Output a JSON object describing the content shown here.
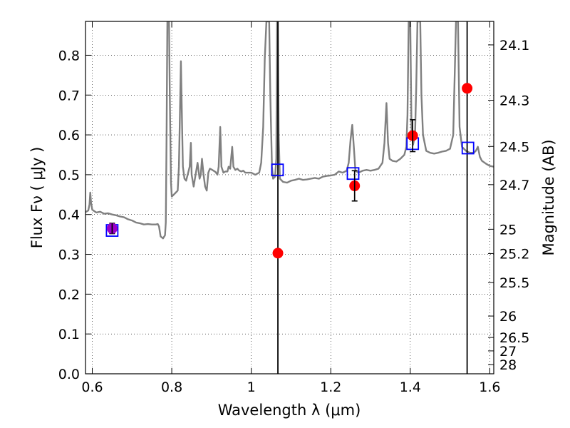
{
  "chart_data": {
    "type": "scatter",
    "xlabel": "Wavelength  λ (μm)",
    "ylabel": "Flux  Fν  ( μJy )",
    "y2label": "Magnitude (AB)",
    "xlim": [
      0.583,
      1.61
    ],
    "ylim": [
      0.0,
      0.885
    ],
    "grid": true,
    "x_ticks": [
      0.6,
      0.8,
      1.0,
      1.2,
      1.4,
      1.6
    ],
    "x_tick_labels": [
      "0.6",
      "0.8",
      "1",
      "1.2",
      "1.4",
      "1.6"
    ],
    "y_ticks": [
      0.0,
      0.1,
      0.2,
      0.3,
      0.4,
      0.5,
      0.6,
      0.7,
      0.8
    ],
    "y_tick_labels": [
      "0.0",
      "0.1",
      "0.2",
      "0.3",
      "0.4",
      "0.5",
      "0.6",
      "0.7",
      "0.8"
    ],
    "y2_ticks": [
      {
        "label": "24.1",
        "flux": 0.826
      },
      {
        "label": "24.3",
        "flux": 0.687
      },
      {
        "label": "24.5",
        "flux": 0.571
      },
      {
        "label": "24.7",
        "flux": 0.475
      },
      {
        "label": "25",
        "flux": 0.363
      },
      {
        "label": "25.2",
        "flux": 0.302
      },
      {
        "label": "25.5",
        "flux": 0.229
      },
      {
        "label": "26",
        "flux": 0.145
      },
      {
        "label": "26.5",
        "flux": 0.0912
      },
      {
        "label": "27",
        "flux": 0.0575
      },
      {
        "label": "28",
        "flux": 0.0229
      }
    ],
    "vertical_lines": [
      1.067,
      1.543
    ],
    "observed": [
      {
        "x": 0.65,
        "y": 0.365,
        "err": 0.013,
        "color": "#9b00c8"
      },
      {
        "x": 1.067,
        "y": 0.303,
        "err": null,
        "color": "#ff0000"
      },
      {
        "x": 1.26,
        "y": 0.472,
        "err": 0.038,
        "color": "#ff0000"
      },
      {
        "x": 1.406,
        "y": 0.598,
        "err": 0.04,
        "color": "#ff0000"
      },
      {
        "x": 1.543,
        "y": 0.717,
        "err": null,
        "color": "#ff0000"
      }
    ],
    "model_points": [
      {
        "x": 0.65,
        "y": 0.36
      },
      {
        "x": 1.066,
        "y": 0.512
      },
      {
        "x": 1.256,
        "y": 0.503
      },
      {
        "x": 1.406,
        "y": 0.578
      },
      {
        "x": 1.545,
        "y": 0.567
      }
    ],
    "spectrum": [
      [
        0.583,
        0.406
      ],
      [
        0.59,
        0.41
      ],
      [
        0.593,
        0.425
      ],
      [
        0.595,
        0.455
      ],
      [
        0.597,
        0.43
      ],
      [
        0.6,
        0.412
      ],
      [
        0.61,
        0.405
      ],
      [
        0.62,
        0.407
      ],
      [
        0.63,
        0.402
      ],
      [
        0.64,
        0.403
      ],
      [
        0.65,
        0.4
      ],
      [
        0.66,
        0.398
      ],
      [
        0.67,
        0.395
      ],
      [
        0.68,
        0.393
      ],
      [
        0.69,
        0.388
      ],
      [
        0.7,
        0.385
      ],
      [
        0.71,
        0.38
      ],
      [
        0.72,
        0.378
      ],
      [
        0.73,
        0.375
      ],
      [
        0.74,
        0.376
      ],
      [
        0.75,
        0.375
      ],
      [
        0.76,
        0.375
      ],
      [
        0.765,
        0.376
      ],
      [
        0.768,
        0.37
      ],
      [
        0.772,
        0.345
      ],
      [
        0.778,
        0.34
      ],
      [
        0.783,
        0.348
      ],
      [
        0.785,
        0.38
      ],
      [
        0.787,
        0.6
      ],
      [
        0.789,
        0.885
      ],
      [
        0.793,
        0.885
      ],
      [
        0.795,
        0.7
      ],
      [
        0.798,
        0.48
      ],
      [
        0.8,
        0.445
      ],
      [
        0.805,
        0.45
      ],
      [
        0.81,
        0.455
      ],
      [
        0.815,
        0.46
      ],
      [
        0.818,
        0.52
      ],
      [
        0.82,
        0.62
      ],
      [
        0.823,
        0.785
      ],
      [
        0.826,
        0.62
      ],
      [
        0.828,
        0.52
      ],
      [
        0.832,
        0.49
      ],
      [
        0.836,
        0.485
      ],
      [
        0.84,
        0.5
      ],
      [
        0.845,
        0.52
      ],
      [
        0.848,
        0.58
      ],
      [
        0.85,
        0.5
      ],
      [
        0.855,
        0.47
      ],
      [
        0.86,
        0.5
      ],
      [
        0.865,
        0.53
      ],
      [
        0.87,
        0.49
      ],
      [
        0.873,
        0.5
      ],
      [
        0.876,
        0.54
      ],
      [
        0.88,
        0.5
      ],
      [
        0.884,
        0.47
      ],
      [
        0.888,
        0.46
      ],
      [
        0.892,
        0.505
      ],
      [
        0.896,
        0.515
      ],
      [
        0.9,
        0.513
      ],
      [
        0.905,
        0.51
      ],
      [
        0.91,
        0.507
      ],
      [
        0.915,
        0.5
      ],
      [
        0.918,
        0.52
      ],
      [
        0.922,
        0.62
      ],
      [
        0.925,
        0.52
      ],
      [
        0.93,
        0.505
      ],
      [
        0.935,
        0.508
      ],
      [
        0.94,
        0.508
      ],
      [
        0.943,
        0.52
      ],
      [
        0.947,
        0.515
      ],
      [
        0.952,
        0.57
      ],
      [
        0.955,
        0.52
      ],
      [
        0.96,
        0.512
      ],
      [
        0.965,
        0.515
      ],
      [
        0.97,
        0.51
      ],
      [
        0.975,
        0.508
      ],
      [
        0.98,
        0.51
      ],
      [
        0.985,
        0.505
      ],
      [
        0.99,
        0.505
      ],
      [
        1.0,
        0.505
      ],
      [
        1.01,
        0.5
      ],
      [
        1.02,
        0.505
      ],
      [
        1.025,
        0.53
      ],
      [
        1.03,
        0.62
      ],
      [
        1.034,
        0.79
      ],
      [
        1.038,
        0.885
      ],
      [
        1.045,
        0.885
      ],
      [
        1.048,
        0.7
      ],
      [
        1.052,
        0.52
      ],
      [
        1.055,
        0.49
      ],
      [
        1.06,
        0.495
      ],
      [
        1.063,
        0.54
      ],
      [
        1.065,
        0.885
      ],
      [
        1.067,
        0.885
      ],
      [
        1.069,
        0.6
      ],
      [
        1.072,
        0.49
      ],
      [
        1.08,
        0.482
      ],
      [
        1.09,
        0.48
      ],
      [
        1.1,
        0.485
      ],
      [
        1.11,
        0.487
      ],
      [
        1.12,
        0.49
      ],
      [
        1.13,
        0.487
      ],
      [
        1.14,
        0.488
      ],
      [
        1.15,
        0.49
      ],
      [
        1.16,
        0.492
      ],
      [
        1.17,
        0.49
      ],
      [
        1.18,
        0.495
      ],
      [
        1.19,
        0.497
      ],
      [
        1.2,
        0.498
      ],
      [
        1.21,
        0.5
      ],
      [
        1.22,
        0.508
      ],
      [
        1.23,
        0.505
      ],
      [
        1.24,
        0.51
      ],
      [
        1.245,
        0.53
      ],
      [
        1.25,
        0.59
      ],
      [
        1.254,
        0.625
      ],
      [
        1.258,
        0.57
      ],
      [
        1.262,
        0.51
      ],
      [
        1.27,
        0.505
      ],
      [
        1.28,
        0.51
      ],
      [
        1.29,
        0.512
      ],
      [
        1.3,
        0.51
      ],
      [
        1.31,
        0.512
      ],
      [
        1.32,
        0.515
      ],
      [
        1.33,
        0.53
      ],
      [
        1.335,
        0.58
      ],
      [
        1.34,
        0.68
      ],
      [
        1.344,
        0.58
      ],
      [
        1.348,
        0.54
      ],
      [
        1.355,
        0.535
      ],
      [
        1.365,
        0.533
      ],
      [
        1.375,
        0.54
      ],
      [
        1.385,
        0.55
      ],
      [
        1.39,
        0.57
      ],
      [
        1.393,
        0.65
      ],
      [
        1.396,
        0.885
      ],
      [
        1.4,
        0.885
      ],
      [
        1.403,
        0.62
      ],
      [
        1.407,
        0.575
      ],
      [
        1.412,
        0.6
      ],
      [
        1.415,
        0.72
      ],
      [
        1.418,
        0.885
      ],
      [
        1.425,
        0.885
      ],
      [
        1.428,
        0.7
      ],
      [
        1.432,
        0.6
      ],
      [
        1.44,
        0.56
      ],
      [
        1.45,
        0.555
      ],
      [
        1.46,
        0.553
      ],
      [
        1.47,
        0.555
      ],
      [
        1.48,
        0.558
      ],
      [
        1.49,
        0.56
      ],
      [
        1.5,
        0.565
      ],
      [
        1.508,
        0.6
      ],
      [
        1.512,
        0.76
      ],
      [
        1.515,
        0.885
      ],
      [
        1.52,
        0.885
      ],
      [
        1.524,
        0.62
      ],
      [
        1.53,
        0.57
      ],
      [
        1.54,
        0.56
      ],
      [
        1.55,
        0.555
      ],
      [
        1.56,
        0.555
      ],
      [
        1.565,
        0.56
      ],
      [
        1.57,
        0.57
      ],
      [
        1.575,
        0.545
      ],
      [
        1.58,
        0.535
      ],
      [
        1.59,
        0.528
      ],
      [
        1.6,
        0.522
      ],
      [
        1.61,
        0.52
      ]
    ]
  }
}
